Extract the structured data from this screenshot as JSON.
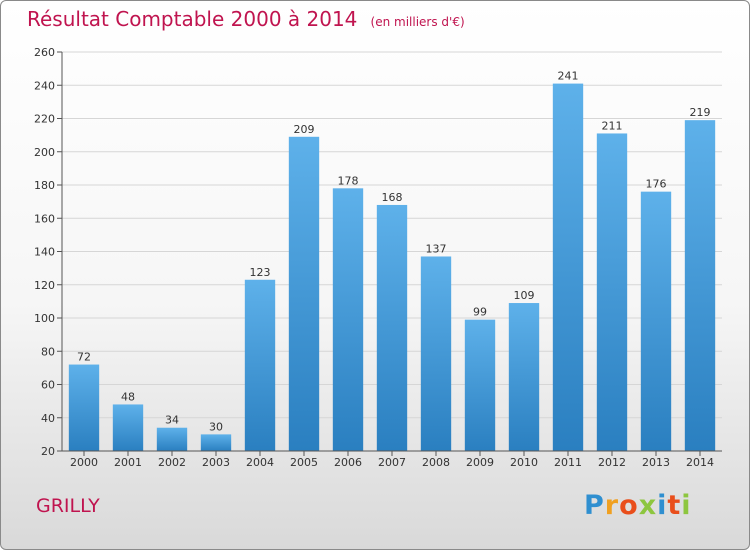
{
  "title": "Résultat Comptable 2000 à 2014",
  "unit_note": "(en milliers d'€)",
  "location": "GRILLY",
  "brand": {
    "text": "Proxiti",
    "letters": [
      "P",
      "r",
      "o",
      "x",
      "i",
      "t",
      "i"
    ],
    "colors": [
      "#2f8fd0",
      "#f0a020",
      "#e94e1b",
      "#8dc63f",
      "#2f8fd0",
      "#e94e1b",
      "#8dc63f"
    ]
  },
  "colors": {
    "title": "#c0144f",
    "bar_top": "#5eb1ea",
    "bar_bottom": "#2a7fc0"
  },
  "chart_data": {
    "type": "bar",
    "title": "Résultat Comptable 2000 à 2014",
    "xlabel": "",
    "ylabel": "",
    "categories": [
      "2000",
      "2001",
      "2002",
      "2003",
      "2004",
      "2005",
      "2006",
      "2007",
      "2008",
      "2009",
      "2010",
      "2011",
      "2012",
      "2013",
      "2014"
    ],
    "values": [
      72,
      48,
      34,
      30,
      123,
      209,
      178,
      168,
      137,
      99,
      109,
      241,
      211,
      176,
      219
    ],
    "ylim": [
      20,
      260
    ],
    "yticks": [
      20,
      40,
      60,
      80,
      100,
      120,
      140,
      160,
      180,
      200,
      220,
      240,
      260
    ],
    "grid": true,
    "legend": "none"
  }
}
